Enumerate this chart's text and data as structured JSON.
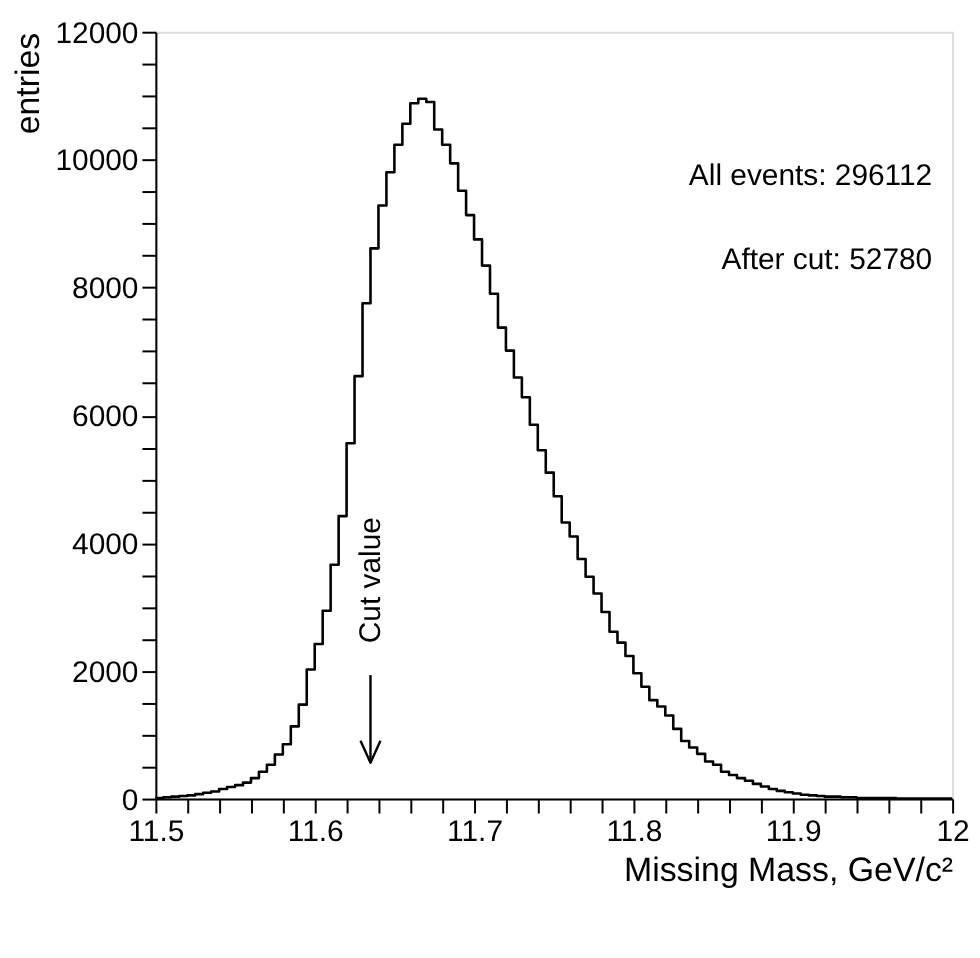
{
  "chart_data": {
    "type": "histogram",
    "xlabel": "Missing Mass, GeV/c²",
    "ylabel": "entries",
    "color": "#000000",
    "bins": [
      11.5,
      11.505,
      11.51,
      11.515,
      11.52,
      11.525,
      11.53,
      11.535,
      11.54,
      11.545,
      11.55,
      11.555,
      11.56,
      11.565,
      11.57,
      11.575,
      11.58,
      11.585,
      11.59,
      11.595,
      11.6,
      11.605,
      11.61,
      11.615,
      11.62,
      11.625,
      11.63,
      11.635,
      11.64,
      11.645,
      11.65,
      11.655,
      11.66,
      11.665,
      11.67,
      11.675,
      11.68,
      11.685,
      11.69,
      11.695,
      11.7,
      11.705,
      11.71,
      11.715,
      11.72,
      11.725,
      11.73,
      11.735,
      11.74,
      11.745,
      11.75,
      11.755,
      11.76,
      11.765,
      11.77,
      11.775,
      11.78,
      11.785,
      11.79,
      11.795,
      11.8,
      11.805,
      11.81,
      11.815,
      11.82,
      11.825,
      11.83,
      11.835,
      11.84,
      11.845,
      11.85,
      11.855,
      11.86,
      11.865,
      11.87,
      11.875,
      11.88,
      11.885,
      11.89,
      11.895,
      11.9,
      11.905,
      11.91,
      11.915,
      11.92,
      11.925,
      11.93,
      11.935,
      11.94,
      11.945,
      11.95,
      11.955,
      11.96,
      11.965,
      11.97,
      11.975,
      11.98,
      11.985,
      11.99,
      11.995,
      12.0
    ],
    "values": [
      10,
      20,
      30,
      40,
      50,
      70,
      90,
      110,
      150,
      180,
      210,
      250,
      320,
      420,
      530,
      690,
      850,
      1130,
      1470,
      2020,
      2420,
      2940,
      3660,
      4420,
      5560,
      6610,
      7750,
      8610,
      9280,
      9800,
      10230,
      10560,
      10880,
      10950,
      10900,
      10470,
      10230,
      9940,
      9510,
      9130,
      8750,
      8340,
      7900,
      7370,
      7010,
      6590,
      6280,
      5850,
      5450,
      5100,
      4730,
      4320,
      4100,
      3750,
      3470,
      3210,
      2920,
      2610,
      2440,
      2230,
      1960,
      1750,
      1540,
      1440,
      1300,
      1090,
      900,
      800,
      700,
      580,
      530,
      420,
      370,
      320,
      280,
      230,
      190,
      150,
      120,
      100,
      80,
      60,
      50,
      40,
      30,
      30,
      20,
      20,
      10,
      10,
      10,
      10,
      10,
      0,
      0,
      0,
      0,
      0,
      0,
      0
    ],
    "xlim": [
      11.5,
      12
    ],
    "xticks": [
      11.5,
      {
        "value": 11.52,
        "label": null
      },
      {
        "value": 11.54,
        "label": null
      },
      {
        "value": 11.56,
        "label": null
      },
      {
        "value": 11.58,
        "label": null
      },
      11.6,
      {
        "value": 11.62,
        "label": null
      },
      {
        "value": 11.64,
        "label": null
      },
      {
        "value": 11.66,
        "label": null
      },
      {
        "value": 11.68,
        "label": null
      },
      11.7,
      {
        "value": 11.72,
        "label": null
      },
      {
        "value": 11.74,
        "label": null
      },
      {
        "value": 11.76,
        "label": null
      },
      {
        "value": 11.78,
        "label": null
      },
      11.8,
      {
        "value": 11.82,
        "label": null
      },
      {
        "value": 11.84,
        "label": null
      },
      {
        "value": 11.86,
        "label": null
      },
      {
        "value": 11.88,
        "label": null
      },
      11.9,
      {
        "value": 11.92,
        "label": null
      },
      {
        "value": 11.94,
        "label": null
      },
      {
        "value": 11.96,
        "label": null
      },
      {
        "value": 11.98,
        "label": null
      },
      12
    ],
    "ylim": [
      0,
      12000
    ],
    "yticks": [
      0,
      {
        "value": 500,
        "label": null
      },
      {
        "value": 1000,
        "label": null
      },
      {
        "value": 1500,
        "label": null
      },
      2000,
      {
        "value": 2500,
        "label": null
      },
      {
        "value": 3000,
        "label": null
      },
      {
        "value": 3500,
        "label": null
      },
      4000,
      {
        "value": 4500,
        "label": null
      },
      {
        "value": 5000,
        "label": null
      },
      {
        "value": 5500,
        "label": null
      },
      6000,
      {
        "value": 6500,
        "label": null
      },
      {
        "value": 7000,
        "label": null
      },
      {
        "value": 7500,
        "label": null
      },
      8000,
      {
        "value": 8500,
        "label": null
      },
      {
        "value": 9000,
        "label": null
      },
      {
        "value": 9500,
        "label": null
      },
      10000,
      {
        "value": 10500,
        "label": null
      },
      {
        "value": 11000,
        "label": null
      },
      {
        "value": 11500,
        "label": null
      },
      12000
    ],
    "grid": false,
    "annotations": [
      "All events: 296112",
      "After cut: 52780",
      {
        "text": "Cut value",
        "x": 11.635
      }
    ]
  }
}
